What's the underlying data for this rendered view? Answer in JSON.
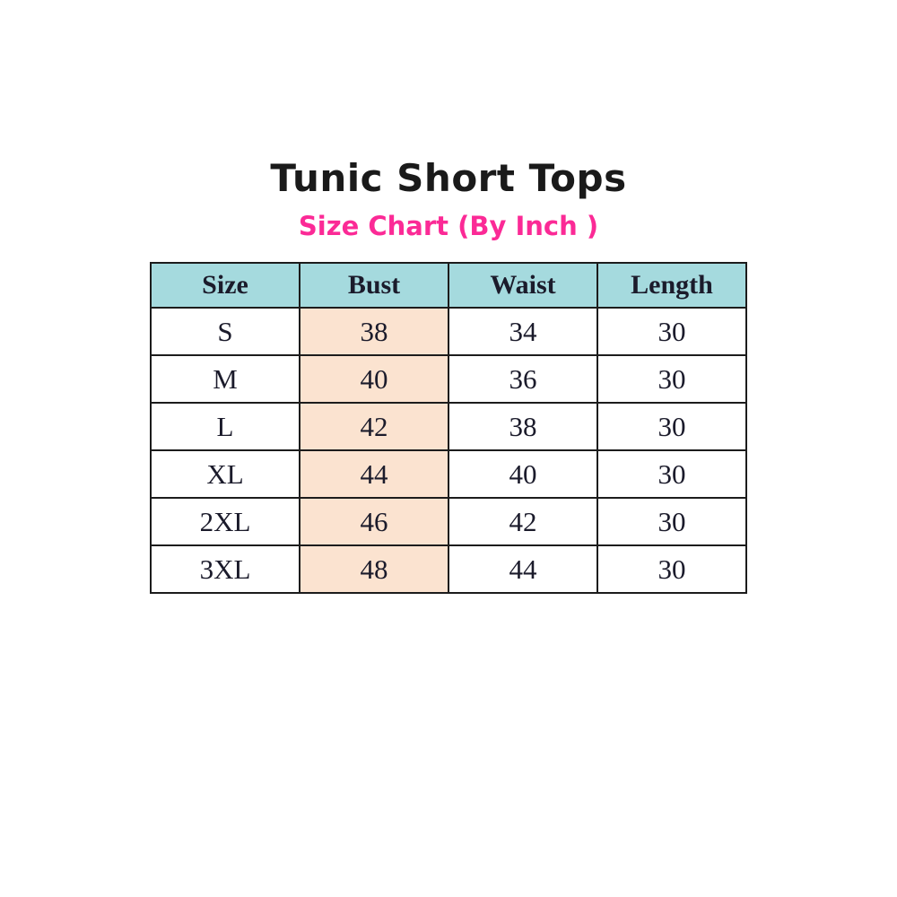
{
  "colors": {
    "title_text": "#1a1a1a",
    "subtitle_text": "#fb2a96",
    "header_bg": "#a5dade",
    "bust_col_bg": "#fbe3d0",
    "border": "#1c1c1c",
    "cell_text": "#1b1b2b"
  },
  "chart_data": {
    "type": "table",
    "title": "Tunic Short Tops",
    "subtitle": "Size Chart (By Inch )",
    "unit": "Inch",
    "columns": [
      "Size",
      "Bust",
      "Waist",
      "Length"
    ],
    "rows": [
      [
        "S",
        "38",
        "34",
        "30"
      ],
      [
        "M",
        "40",
        "36",
        "30"
      ],
      [
        "L",
        "42",
        "38",
        "30"
      ],
      [
        "XL",
        "44",
        "40",
        "30"
      ],
      [
        "2XL",
        "46",
        "42",
        "30"
      ],
      [
        "3XL",
        "48",
        "44",
        "30"
      ]
    ]
  }
}
